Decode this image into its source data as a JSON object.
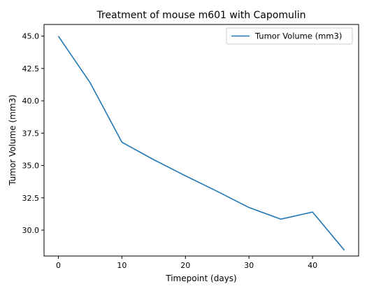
{
  "chart_data": {
    "type": "line",
    "title": "Treatment of mouse m601 with Capomulin",
    "xlabel": "Timepoint (days)",
    "ylabel": "Tumor Volume (mm3)",
    "xlim": [
      -2.25,
      47.25
    ],
    "ylim": [
      28.0,
      45.9
    ],
    "xticks": [
      0,
      10,
      20,
      30,
      40
    ],
    "xtick_labels": [
      "0",
      "10",
      "20",
      "30",
      "40"
    ],
    "yticks": [
      30.0,
      32.5,
      35.0,
      37.5,
      40.0,
      42.5,
      45.0
    ],
    "ytick_labels": [
      "30.0",
      "32.5",
      "35.0",
      "37.5",
      "40.0",
      "42.5",
      "45.0"
    ],
    "grid": false,
    "legend_position": "top-right",
    "series": [
      {
        "name": "Tumor Volume (mm3)",
        "color": "#1f77b4",
        "x": [
          0,
          5,
          10,
          15,
          20,
          25,
          30,
          35,
          40,
          45
        ],
        "y": [
          45.0,
          41.4,
          36.8,
          35.45,
          34.2,
          33.0,
          31.75,
          30.85,
          31.4,
          28.45
        ]
      }
    ]
  }
}
